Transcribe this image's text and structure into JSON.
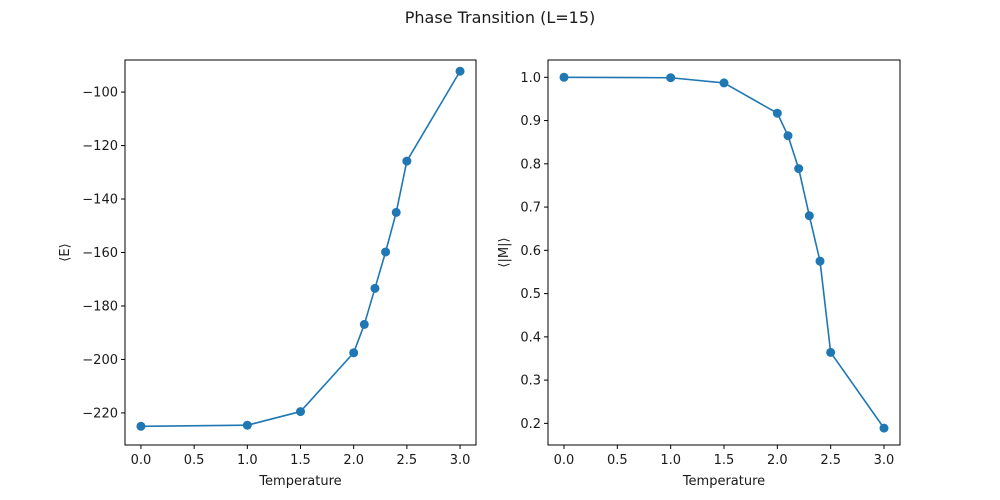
{
  "figure": {
    "suptitle": "Phase Transition (L=15)"
  },
  "colors": {
    "series": "#1f77b4",
    "axis": "#000000",
    "text": "#1a1a1a"
  },
  "chart_data": [
    {
      "type": "line",
      "markers": "circle",
      "title": "",
      "xlabel": "Temperature",
      "ylabel": "⟨E⟩",
      "xlim": [
        -0.15,
        3.15
      ],
      "ylim": [
        -232,
        -88
      ],
      "xticks": [
        0.0,
        0.5,
        1.0,
        1.5,
        2.0,
        2.5,
        3.0
      ],
      "xtick_labels": [
        "0.0",
        "0.5",
        "1.0",
        "1.5",
        "2.0",
        "2.5",
        "3.0"
      ],
      "yticks": [
        -220,
        -200,
        -180,
        -160,
        -140,
        -120,
        -100
      ],
      "ytick_labels": [
        "−220",
        "−200",
        "−180",
        "−160",
        "−140",
        "−120",
        "−100"
      ],
      "grid": false,
      "x": [
        0.0,
        1.0,
        1.5,
        2.0,
        2.1,
        2.2,
        2.3,
        2.4,
        2.5,
        3.0
      ],
      "y": [
        -225.0,
        -224.6,
        -219.5,
        -197.5,
        -186.9,
        -173.4,
        -159.8,
        -145.0,
        -125.8,
        -92.2
      ]
    },
    {
      "type": "line",
      "markers": "circle",
      "title": "",
      "xlabel": "Temperature",
      "ylabel": "⟨|M|⟩",
      "xlim": [
        -0.15,
        3.15
      ],
      "ylim": [
        0.15,
        1.04
      ],
      "xticks": [
        0.0,
        0.5,
        1.0,
        1.5,
        2.0,
        2.5,
        3.0
      ],
      "xtick_labels": [
        "0.0",
        "0.5",
        "1.0",
        "1.5",
        "2.0",
        "2.5",
        "3.0"
      ],
      "yticks": [
        0.2,
        0.3,
        0.4,
        0.5,
        0.6,
        0.7,
        0.8,
        0.9,
        1.0
      ],
      "ytick_labels": [
        "0.2",
        "0.3",
        "0.4",
        "0.5",
        "0.6",
        "0.7",
        "0.8",
        "0.9",
        "1.0"
      ],
      "grid": false,
      "x": [
        0.0,
        1.0,
        1.5,
        2.0,
        2.1,
        2.2,
        2.3,
        2.4,
        2.5,
        3.0
      ],
      "y": [
        1.0,
        0.999,
        0.987,
        0.917,
        0.865,
        0.789,
        0.68,
        0.575,
        0.364,
        0.189
      ]
    }
  ]
}
